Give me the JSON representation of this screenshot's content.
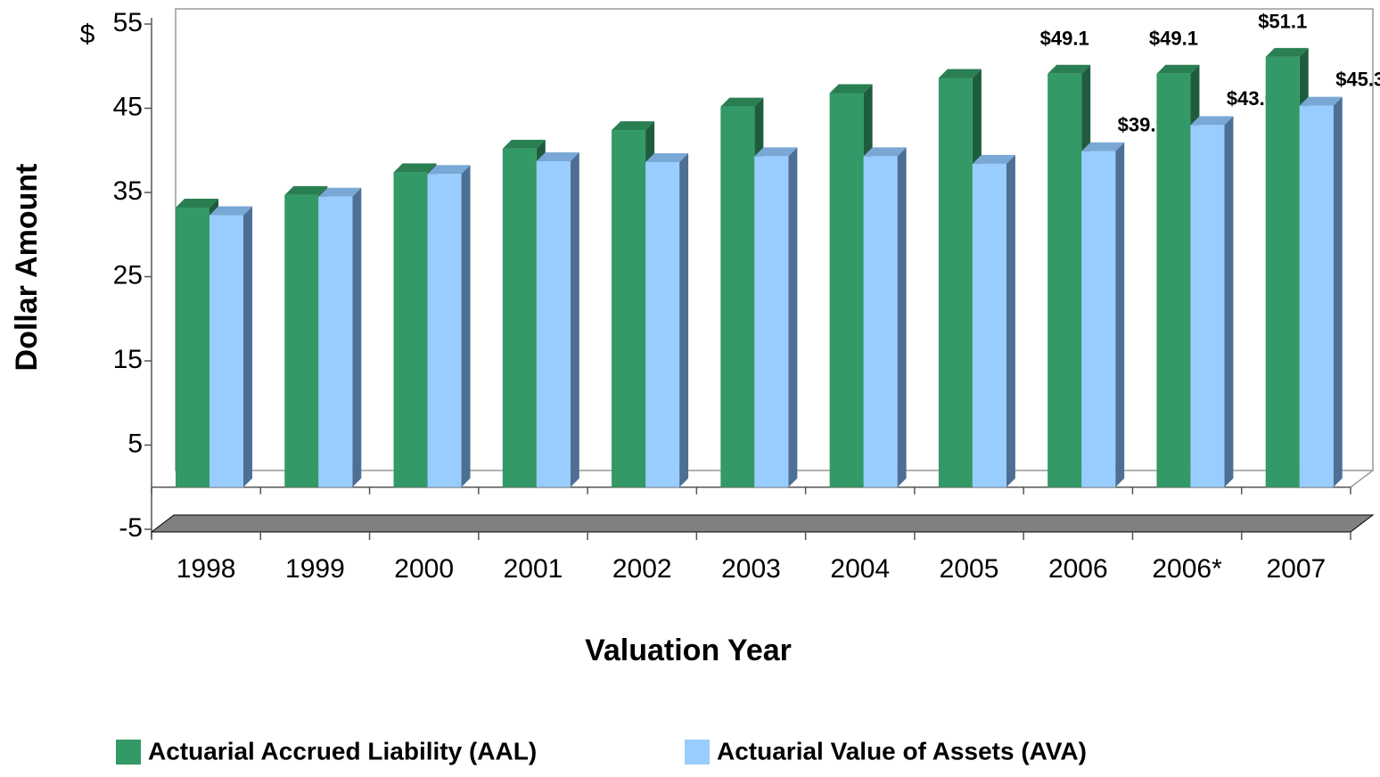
{
  "chart_data": {
    "type": "bar3d",
    "y_unit": "$",
    "y_axis_label": "Dollar Amount",
    "x_axis_label": "Valuation Year",
    "categories": [
      "1998",
      "1999",
      "2000",
      "2001",
      "2002",
      "2003",
      "2004",
      "2005",
      "2006",
      "2006*",
      "2007"
    ],
    "series": [
      {
        "name": "Actuarial Accrued Liability (AAL)",
        "color": "#339966",
        "values": [
          33.2,
          34.7,
          37.4,
          40.2,
          42.4,
          45.2,
          46.8,
          48.6,
          49.1,
          49.1,
          51.1
        ],
        "value_labels": [
          null,
          null,
          null,
          null,
          null,
          null,
          null,
          null,
          "$49.1",
          "$49.1",
          "$51.1"
        ]
      },
      {
        "name": "Actuarial Value of Assets (AVA)",
        "color": "#99ccff",
        "values": [
          32.3,
          34.5,
          37.2,
          38.7,
          38.6,
          39.3,
          39.3,
          38.4,
          39.9,
          43.0,
          45.3
        ],
        "value_labels": [
          null,
          null,
          null,
          null,
          null,
          null,
          null,
          null,
          "$39.9",
          "$43.0",
          "$45.3"
        ]
      }
    ],
    "ylim": [
      -5,
      55
    ],
    "yticks": [
      -5,
      5,
      15,
      25,
      35,
      45,
      55
    ]
  }
}
